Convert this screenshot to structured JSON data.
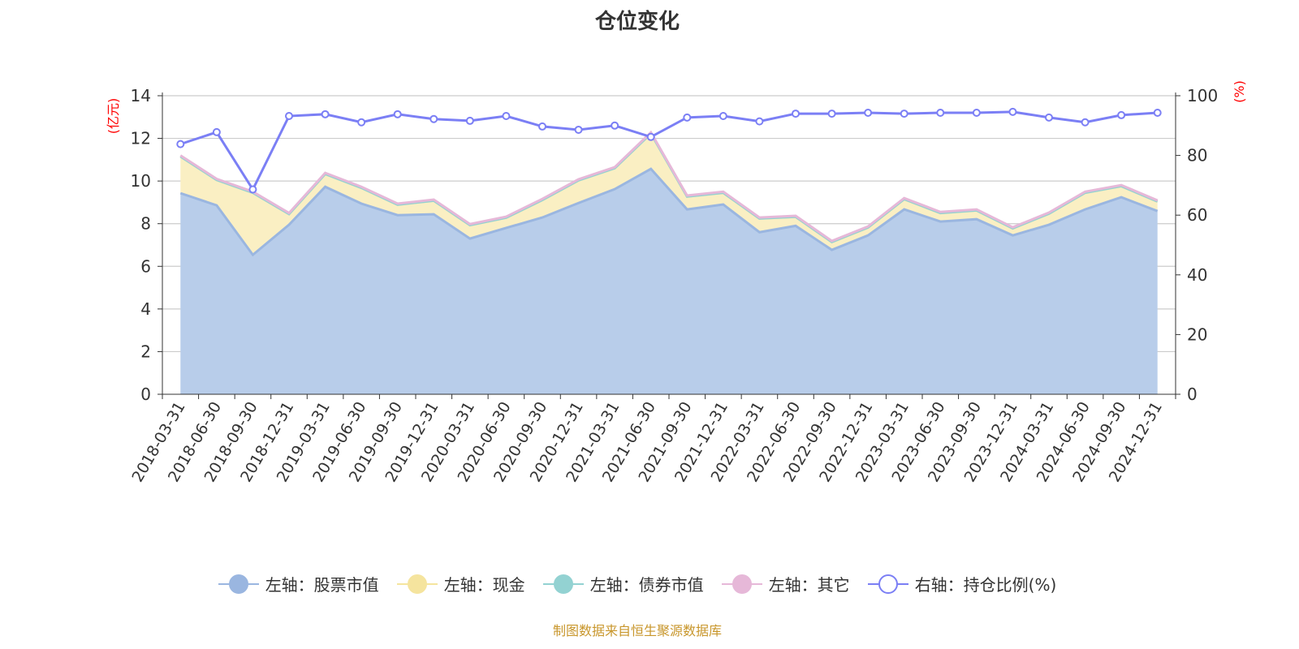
{
  "title": "仓位变化",
  "footer": "制图数据来自恒生聚源数据库",
  "colors": {
    "stock": "#9ab6e0",
    "cash": "#f5e49e",
    "bond": "#93d2d2",
    "other": "#e6b8d8",
    "ratio": "#7b7ff5"
  },
  "chart_data": {
    "type": "area",
    "title": "仓位变化",
    "left_axis": {
      "label": "(亿元)",
      "range": [
        0,
        14
      ],
      "ticks": [
        0,
        2,
        4,
        6,
        8,
        10,
        12,
        14
      ]
    },
    "right_axis": {
      "label": "(%)",
      "range": [
        0,
        100
      ],
      "ticks": [
        0,
        20,
        40,
        60,
        80,
        100
      ]
    },
    "grid": true,
    "legend_position": "bottom",
    "categories": [
      "2018-03-31",
      "2018-06-30",
      "2018-09-30",
      "2018-12-31",
      "2019-03-31",
      "2019-06-30",
      "2019-09-30",
      "2019-12-31",
      "2020-03-31",
      "2020-06-30",
      "2020-09-30",
      "2020-12-31",
      "2021-03-31",
      "2021-06-30",
      "2021-09-30",
      "2021-12-31",
      "2022-03-31",
      "2022-06-30",
      "2022-09-30",
      "2022-12-31",
      "2023-03-31",
      "2023-06-30",
      "2023-09-30",
      "2023-12-31",
      "2024-03-31",
      "2024-06-30",
      "2024-09-30",
      "2024-12-31"
    ],
    "series": [
      {
        "name": "左轴：股票市值",
        "axis": "left",
        "stacked": true,
        "values": [
          9.43,
          8.86,
          6.54,
          7.95,
          9.73,
          8.94,
          8.4,
          8.44,
          7.3,
          7.8,
          8.29,
          8.97,
          9.62,
          10.57,
          8.67,
          8.9,
          7.6,
          7.9,
          6.77,
          7.45,
          8.67,
          8.1,
          8.21,
          7.45,
          7.95,
          8.67,
          9.24,
          8.59
        ]
      },
      {
        "name": "左轴：现金",
        "axis": "left",
        "stacked": true,
        "values": [
          1.72,
          1.19,
          2.91,
          0.5,
          0.6,
          0.74,
          0.49,
          0.64,
          0.63,
          0.48,
          0.82,
          1.06,
          0.98,
          1.66,
          0.6,
          0.55,
          0.64,
          0.42,
          0.37,
          0.37,
          0.48,
          0.4,
          0.41,
          0.33,
          0.52,
          0.78,
          0.52,
          0.45
        ]
      },
      {
        "name": "左轴：债券市值",
        "axis": "left",
        "stacked": true,
        "values": [
          0,
          0,
          0,
          0,
          0,
          0,
          0,
          0,
          0,
          0,
          0,
          0,
          0,
          0,
          0,
          0,
          0,
          0,
          0,
          0,
          0,
          0,
          0,
          0,
          0,
          0,
          0,
          0
        ]
      },
      {
        "name": "左轴：其它",
        "axis": "left",
        "stacked": true,
        "values": [
          0.05,
          0.05,
          0.05,
          0.05,
          0.05,
          0.05,
          0.05,
          0.05,
          0.05,
          0.05,
          0.05,
          0.05,
          0.05,
          0.05,
          0.05,
          0.05,
          0.05,
          0.05,
          0.05,
          0.05,
          0.05,
          0.05,
          0.05,
          0.05,
          0.05,
          0.05,
          0.05,
          0.05
        ]
      },
      {
        "name": "右轴：持仓比例(%)",
        "axis": "right",
        "stacked": false,
        "values": [
          83.8,
          87.8,
          68.6,
          93.2,
          93.8,
          91.1,
          93.8,
          92.2,
          91.6,
          93.2,
          89.7,
          88.6,
          90.0,
          86.2,
          92.7,
          93.2,
          91.4,
          94.0,
          94.0,
          94.3,
          94.0,
          94.3,
          94.3,
          94.6,
          92.7,
          91.1,
          93.5,
          94.3
        ]
      }
    ]
  }
}
